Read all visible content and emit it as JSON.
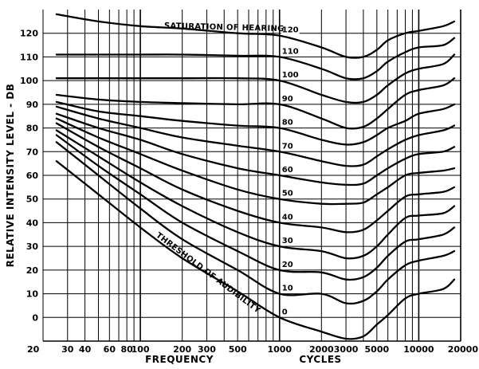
{
  "chart_data": {
    "type": "line",
    "title": "",
    "xlabel": "FREQUENCY",
    "xlabel2": "CYCLES",
    "ylabel": "RELATIVE INTENSITY LEVEL - DB",
    "xscale": "log",
    "xlim": [
      20,
      20000
    ],
    "ylim": [
      -10,
      130
    ],
    "x_ticks": [
      20,
      30,
      40,
      60,
      80,
      100,
      200,
      300,
      500,
      1000,
      2000,
      3000,
      5000,
      10000,
      20000
    ],
    "x_tick_labels": [
      "20",
      "30",
      "40",
      "60",
      "80",
      "100",
      "200",
      "300",
      "500",
      "1000",
      "2000",
      "3000",
      "5000",
      "10000",
      "20000"
    ],
    "y_ticks": [
      0,
      10,
      20,
      30,
      40,
      50,
      60,
      70,
      80,
      90,
      100,
      110,
      120
    ],
    "y_tick_labels": [
      "0",
      "10",
      "20",
      "30",
      "40",
      "50",
      "60",
      "70",
      "80",
      "90",
      "100",
      "110",
      "120"
    ],
    "grid": true,
    "annotations": [
      {
        "text": "SATURATION OF HEARING",
        "x": 400,
        "y": 121.5
      },
      {
        "text": "THRESHOLD OF AUDIBILITY",
        "x": 300,
        "y": 18
      }
    ],
    "series": [
      {
        "label": "120",
        "points": [
          [
            25,
            128
          ],
          [
            50,
            125
          ],
          [
            100,
            123
          ],
          [
            200,
            122
          ],
          [
            500,
            120
          ],
          [
            1000,
            119
          ],
          [
            2000,
            114
          ],
          [
            3000,
            110
          ],
          [
            4000,
            110
          ],
          [
            5000,
            113
          ],
          [
            6000,
            117
          ],
          [
            8000,
            120
          ],
          [
            10000,
            121
          ],
          [
            15000,
            123
          ],
          [
            18000,
            125
          ]
        ]
      },
      {
        "label": "110",
        "points": [
          [
            25,
            111
          ],
          [
            50,
            111
          ],
          [
            100,
            111
          ],
          [
            200,
            111
          ],
          [
            500,
            110.5
          ],
          [
            1000,
            110
          ],
          [
            2000,
            105
          ],
          [
            3000,
            101
          ],
          [
            4000,
            101
          ],
          [
            5000,
            104
          ],
          [
            6000,
            108
          ],
          [
            8000,
            112
          ],
          [
            10000,
            114
          ],
          [
            15000,
            115
          ],
          [
            18000,
            118
          ]
        ]
      },
      {
        "label": "100",
        "points": [
          [
            25,
            101
          ],
          [
            50,
            101
          ],
          [
            100,
            101
          ],
          [
            200,
            101
          ],
          [
            500,
            101
          ],
          [
            1000,
            100
          ],
          [
            2000,
            94
          ],
          [
            3000,
            91
          ],
          [
            4000,
            91
          ],
          [
            5000,
            94
          ],
          [
            6000,
            98
          ],
          [
            8000,
            103
          ],
          [
            10000,
            105
          ],
          [
            15000,
            107
          ],
          [
            18000,
            111
          ]
        ]
      },
      {
        "label": "90",
        "points": [
          [
            25,
            94
          ],
          [
            50,
            92
          ],
          [
            100,
            91
          ],
          [
            200,
            90.5
          ],
          [
            500,
            90
          ],
          [
            1000,
            90
          ],
          [
            2000,
            84
          ],
          [
            3000,
            80
          ],
          [
            4000,
            80.5
          ],
          [
            5000,
            84
          ],
          [
            6000,
            88
          ],
          [
            8000,
            94
          ],
          [
            10000,
            96
          ],
          [
            15000,
            98
          ],
          [
            18000,
            101
          ]
        ]
      },
      {
        "label": "80",
        "points": [
          [
            25,
            91
          ],
          [
            50,
            87
          ],
          [
            100,
            85
          ],
          [
            200,
            83
          ],
          [
            500,
            81
          ],
          [
            1000,
            80
          ],
          [
            2000,
            75
          ],
          [
            3000,
            73
          ],
          [
            4000,
            74
          ],
          [
            5000,
            77
          ],
          [
            6000,
            80
          ],
          [
            8000,
            83
          ],
          [
            10000,
            86
          ],
          [
            15000,
            88
          ],
          [
            18000,
            90
          ]
        ]
      },
      {
        "label": "70",
        "points": [
          [
            25,
            89
          ],
          [
            50,
            84
          ],
          [
            100,
            80
          ],
          [
            200,
            76
          ],
          [
            500,
            72.5
          ],
          [
            1000,
            70
          ],
          [
            2000,
            66
          ],
          [
            3000,
            64
          ],
          [
            4000,
            64.5
          ],
          [
            5000,
            68
          ],
          [
            6000,
            71
          ],
          [
            8000,
            75
          ],
          [
            10000,
            77
          ],
          [
            15000,
            79
          ],
          [
            18000,
            81
          ]
        ]
      },
      {
        "label": "60",
        "points": [
          [
            25,
            86
          ],
          [
            50,
            80
          ],
          [
            100,
            75
          ],
          [
            200,
            69
          ],
          [
            500,
            63
          ],
          [
            1000,
            60
          ],
          [
            2000,
            57
          ],
          [
            3000,
            56
          ],
          [
            4000,
            56.5
          ],
          [
            5000,
            60
          ],
          [
            6000,
            63
          ],
          [
            8000,
            67
          ],
          [
            10000,
            69
          ],
          [
            15000,
            70
          ],
          [
            18000,
            72
          ]
        ]
      },
      {
        "label": "50",
        "points": [
          [
            25,
            84
          ],
          [
            50,
            76
          ],
          [
            100,
            69
          ],
          [
            200,
            62
          ],
          [
            500,
            54
          ],
          [
            1000,
            50
          ],
          [
            2000,
            48
          ],
          [
            3000,
            48
          ],
          [
            4000,
            48.5
          ],
          [
            5000,
            52
          ],
          [
            6000,
            55
          ],
          [
            8000,
            60
          ],
          [
            10000,
            61
          ],
          [
            15000,
            62
          ],
          [
            18000,
            63
          ]
        ]
      },
      {
        "label": "40",
        "points": [
          [
            25,
            82
          ],
          [
            50,
            72
          ],
          [
            100,
            63
          ],
          [
            200,
            54
          ],
          [
            500,
            45
          ],
          [
            1000,
            40
          ],
          [
            2000,
            38
          ],
          [
            3000,
            36
          ],
          [
            4000,
            37
          ],
          [
            5000,
            41
          ],
          [
            6000,
            45
          ],
          [
            8000,
            51
          ],
          [
            10000,
            52
          ],
          [
            15000,
            53
          ],
          [
            18000,
            55
          ]
        ]
      },
      {
        "label": "30",
        "points": [
          [
            25,
            79
          ],
          [
            50,
            68
          ],
          [
            100,
            57
          ],
          [
            200,
            47
          ],
          [
            500,
            36
          ],
          [
            1000,
            30
          ],
          [
            2000,
            28
          ],
          [
            3000,
            25
          ],
          [
            4000,
            26
          ],
          [
            5000,
            30
          ],
          [
            6000,
            35
          ],
          [
            8000,
            42
          ],
          [
            10000,
            43
          ],
          [
            15000,
            44
          ],
          [
            18000,
            47
          ]
        ]
      },
      {
        "label": "20",
        "points": [
          [
            25,
            77
          ],
          [
            50,
            64
          ],
          [
            100,
            52
          ],
          [
            200,
            40
          ],
          [
            500,
            28
          ],
          [
            1000,
            20
          ],
          [
            2000,
            19
          ],
          [
            3000,
            16
          ],
          [
            4000,
            17
          ],
          [
            5000,
            21
          ],
          [
            6000,
            26
          ],
          [
            8000,
            32
          ],
          [
            10000,
            33
          ],
          [
            15000,
            35
          ],
          [
            18000,
            38
          ]
        ]
      },
      {
        "label": "10",
        "points": [
          [
            25,
            74
          ],
          [
            50,
            60
          ],
          [
            100,
            46
          ],
          [
            200,
            33
          ],
          [
            500,
            20
          ],
          [
            1000,
            10
          ],
          [
            2000,
            10
          ],
          [
            3000,
            6
          ],
          [
            4000,
            7
          ],
          [
            5000,
            11
          ],
          [
            6000,
            16
          ],
          [
            8000,
            22
          ],
          [
            10000,
            24
          ],
          [
            15000,
            26
          ],
          [
            18000,
            28
          ]
        ]
      },
      {
        "label": "0",
        "points": [
          [
            25,
            66
          ],
          [
            50,
            52
          ],
          [
            100,
            38
          ],
          [
            200,
            25
          ],
          [
            500,
            11
          ],
          [
            1000,
            0
          ],
          [
            2000,
            -6
          ],
          [
            3000,
            -9
          ],
          [
            4000,
            -8
          ],
          [
            5000,
            -3
          ],
          [
            6000,
            1
          ],
          [
            8000,
            8
          ],
          [
            10000,
            10
          ],
          [
            15000,
            12
          ],
          [
            18000,
            16
          ]
        ]
      }
    ]
  }
}
